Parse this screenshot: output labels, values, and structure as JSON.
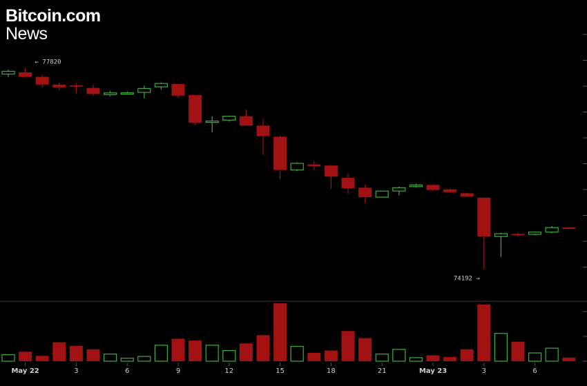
{
  "logo": {
    "line1": "Bitcoin.com",
    "line2": "News"
  },
  "colors": {
    "background": "#000000",
    "up": "#3fae3f",
    "down": "#a31212",
    "up_volume": "#3fae3f",
    "down_volume": "#a31212",
    "text": "#d0d0d0",
    "divider": "#3a3a3a"
  },
  "chart_data": {
    "type": "candlestick",
    "title": "",
    "xlabel": "",
    "ylabel": "",
    "ylim": [
      73700,
      78300
    ],
    "x_ticks": [
      {
        "index": 1,
        "label": "May 22"
      },
      {
        "index": 4,
        "label": "3"
      },
      {
        "index": 7,
        "label": "6"
      },
      {
        "index": 10,
        "label": "9"
      },
      {
        "index": 13,
        "label": "12"
      },
      {
        "index": 16,
        "label": "15"
      },
      {
        "index": 19,
        "label": "18"
      },
      {
        "index": 22,
        "label": "21"
      },
      {
        "index": 25,
        "label": "May 23"
      },
      {
        "index": 28,
        "label": "3"
      },
      {
        "index": 31,
        "label": "6"
      }
    ],
    "candles": [
      {
        "o": 77710,
        "h": 77790,
        "l": 77660,
        "c": 77760,
        "v": 110
      },
      {
        "o": 77740,
        "h": 77820,
        "l": 77640,
        "c": 77660,
        "v": 160
      },
      {
        "o": 77660,
        "h": 77700,
        "l": 77470,
        "c": 77520,
        "v": 90
      },
      {
        "o": 77520,
        "h": 77560,
        "l": 77420,
        "c": 77470,
        "v": 320
      },
      {
        "o": 77500,
        "h": 77550,
        "l": 77360,
        "c": 77490,
        "v": 260
      },
      {
        "o": 77460,
        "h": 77520,
        "l": 77320,
        "c": 77350,
        "v": 200
      },
      {
        "o": 77340,
        "h": 77410,
        "l": 77310,
        "c": 77370,
        "v": 120
      },
      {
        "o": 77350,
        "h": 77400,
        "l": 77340,
        "c": 77370,
        "v": 50
      },
      {
        "o": 77380,
        "h": 77500,
        "l": 77270,
        "c": 77450,
        "v": 80
      },
      {
        "o": 77480,
        "h": 77560,
        "l": 77430,
        "c": 77540,
        "v": 270
      },
      {
        "o": 77530,
        "h": 77530,
        "l": 77280,
        "c": 77320,
        "v": 380
      },
      {
        "o": 77330,
        "h": 77330,
        "l": 76790,
        "c": 76830,
        "v": 350
      },
      {
        "o": 76840,
        "h": 76950,
        "l": 76660,
        "c": 76860,
        "v": 270
      },
      {
        "o": 76880,
        "h": 76960,
        "l": 76850,
        "c": 76950,
        "v": 180
      },
      {
        "o": 76950,
        "h": 77070,
        "l": 76820,
        "c": 76780,
        "v": 300
      },
      {
        "o": 76780,
        "h": 76900,
        "l": 76250,
        "c": 76590,
        "v": 440
      },
      {
        "o": 76580,
        "h": 76600,
        "l": 75820,
        "c": 75980,
        "v": 980
      },
      {
        "o": 75980,
        "h": 76120,
        "l": 75960,
        "c": 76100,
        "v": 250
      },
      {
        "o": 76080,
        "h": 76140,
        "l": 75980,
        "c": 76050,
        "v": 140
      },
      {
        "o": 76060,
        "h": 76070,
        "l": 75640,
        "c": 75860,
        "v": 180
      },
      {
        "o": 75840,
        "h": 75920,
        "l": 75550,
        "c": 75650,
        "v": 510
      },
      {
        "o": 75660,
        "h": 75710,
        "l": 75380,
        "c": 75490,
        "v": 390
      },
      {
        "o": 75490,
        "h": 75600,
        "l": 75500,
        "c": 75600,
        "v": 120
      },
      {
        "o": 75600,
        "h": 75680,
        "l": 75520,
        "c": 75660,
        "v": 200
      },
      {
        "o": 75680,
        "h": 75730,
        "l": 75660,
        "c": 75710,
        "v": 60
      },
      {
        "o": 75710,
        "h": 75720,
        "l": 75600,
        "c": 75620,
        "v": 100
      },
      {
        "o": 75630,
        "h": 75650,
        "l": 75570,
        "c": 75580,
        "v": 70
      },
      {
        "o": 75560,
        "h": 75570,
        "l": 75490,
        "c": 75500,
        "v": 200
      },
      {
        "o": 75480,
        "h": 75480,
        "l": 74192,
        "c": 74780,
        "v": 960
      },
      {
        "o": 74780,
        "h": 74850,
        "l": 74410,
        "c": 74830,
        "v": 470
      },
      {
        "o": 74820,
        "h": 74860,
        "l": 74780,
        "c": 74810,
        "v": 330
      },
      {
        "o": 74820,
        "h": 74870,
        "l": 74800,
        "c": 74860,
        "v": 140
      },
      {
        "o": 74860,
        "h": 74970,
        "l": 74840,
        "c": 74940,
        "v": 220
      },
      {
        "o": 74940,
        "h": 74950,
        "l": 74910,
        "c": 74920,
        "v": 60
      }
    ],
    "annotations": [
      {
        "label": "← 77820",
        "index": 1,
        "price": 77820,
        "side": "right"
      },
      {
        "label": "74192 →",
        "index": 28,
        "price": 74192,
        "side": "left"
      }
    ],
    "grid": false,
    "legend": "none"
  }
}
